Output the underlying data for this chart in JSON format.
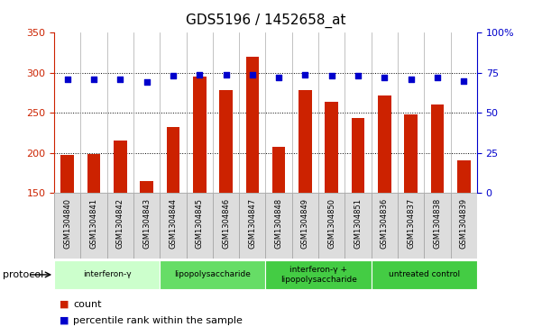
{
  "title": "GDS5196 / 1452658_at",
  "samples": [
    "GSM1304840",
    "GSM1304841",
    "GSM1304842",
    "GSM1304843",
    "GSM1304844",
    "GSM1304845",
    "GSM1304846",
    "GSM1304847",
    "GSM1304848",
    "GSM1304849",
    "GSM1304850",
    "GSM1304851",
    "GSM1304836",
    "GSM1304837",
    "GSM1304838",
    "GSM1304839"
  ],
  "counts": [
    197,
    198,
    215,
    165,
    232,
    295,
    278,
    320,
    208,
    278,
    264,
    244,
    272,
    248,
    260,
    191
  ],
  "percentiles": [
    71,
    71,
    71,
    69,
    73,
    74,
    74,
    74,
    72,
    74,
    73,
    73,
    72,
    71,
    72,
    70
  ],
  "protocols": [
    {
      "label": "interferon-γ",
      "start": 0,
      "end": 4,
      "color": "#ccffcc"
    },
    {
      "label": "lipopolysaccharide",
      "start": 4,
      "end": 8,
      "color": "#66dd66"
    },
    {
      "label": "interferon-γ +\nlipopolysaccharide",
      "start": 8,
      "end": 12,
      "color": "#44cc44"
    },
    {
      "label": "untreated control",
      "start": 12,
      "end": 16,
      "color": "#44cc44"
    }
  ],
  "ylim_left": [
    150,
    350
  ],
  "ylim_right": [
    0,
    100
  ],
  "bar_color": "#cc2200",
  "dot_color": "#0000cc",
  "background_color": "#ffffff",
  "right_axis_color": "#0000cc",
  "cell_bg": "#dddddd",
  "cell_border": "#aaaaaa"
}
